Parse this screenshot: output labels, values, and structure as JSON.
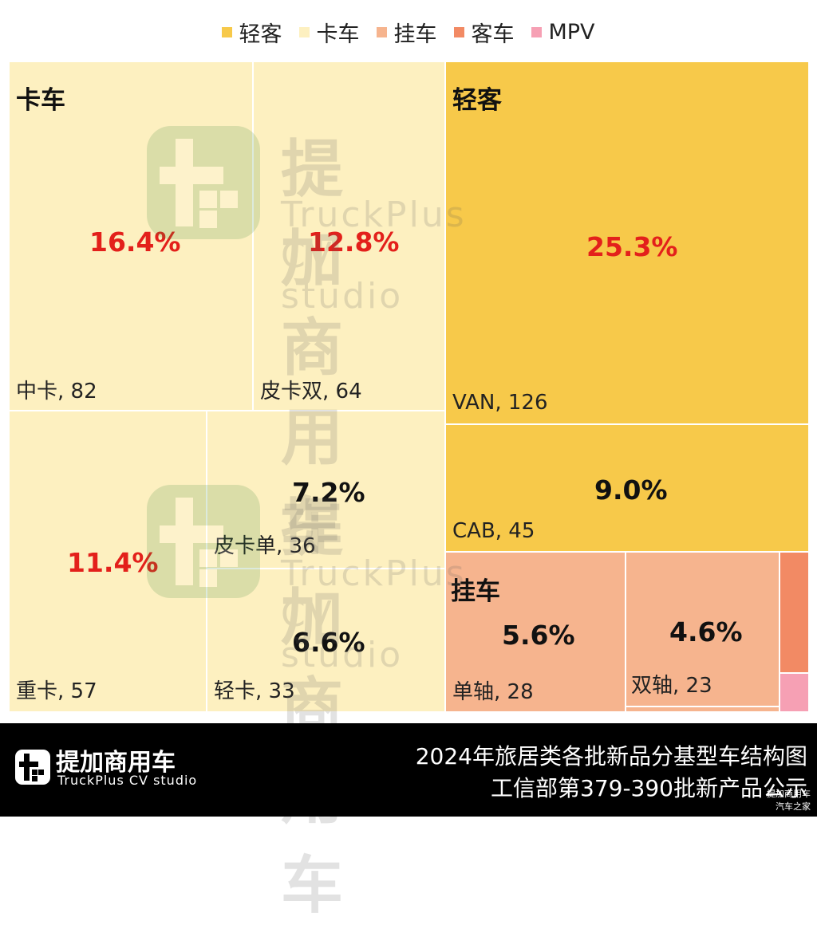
{
  "legend": [
    {
      "label": "轻客",
      "color": "#f7c94a"
    },
    {
      "label": "卡车",
      "color": "#fdf0c0"
    },
    {
      "label": "挂车",
      "color": "#f6b48e"
    },
    {
      "label": "客车",
      "color": "#f28a64"
    },
    {
      "label": "MPV",
      "color": "#f6a0b4"
    }
  ],
  "chart_data": {
    "type": "treemap",
    "groups": [
      {
        "name": "卡车",
        "color": "#fdf0c0",
        "items": [
          {
            "id": "zhongka",
            "name": "中卡",
            "count": 82,
            "share": "16.4%"
          },
          {
            "id": "pikashuang",
            "name": "皮卡双",
            "count": 64,
            "share": "12.8%"
          },
          {
            "id": "zhongka2",
            "name": "重卡",
            "count": 57,
            "share": "11.4%"
          },
          {
            "id": "pikadan",
            "name": "皮卡单",
            "count": 36,
            "share": "7.2%"
          },
          {
            "id": "qingka",
            "name": "轻卡",
            "count": 33,
            "share": "6.6%"
          }
        ]
      },
      {
        "name": "轻客",
        "color": "#f7c94a",
        "items": [
          {
            "id": "van",
            "name": "VAN",
            "count": 126,
            "share": "25.3%"
          },
          {
            "id": "cab",
            "name": "CAB",
            "count": 45,
            "share": "9.0%"
          }
        ]
      },
      {
        "name": "挂车",
        "color": "#f6b48e",
        "items": [
          {
            "id": "danzhou",
            "name": "单轴",
            "count": 28,
            "share": "5.6%"
          },
          {
            "id": "shuangzhou",
            "name": "双轴",
            "count": 23,
            "share": "4.6%"
          }
        ]
      },
      {
        "name": "客车",
        "color": "#f28a64",
        "items": []
      },
      {
        "name": "MPV",
        "color": "#f6a0b4",
        "items": []
      }
    ]
  },
  "watermark": {
    "cn": "提加商用车",
    "en": "TruckPlus CV studio"
  },
  "footer": {
    "brand_cn": "提加商用车",
    "brand_en": "TruckPlus CV studio",
    "title_line1": "2024年旅居类各批新品分基型车结构图",
    "title_line2": "工信部第379-390批新产品公示",
    "credit_line1": "提加商用车",
    "credit_line2": "汽车之家"
  }
}
